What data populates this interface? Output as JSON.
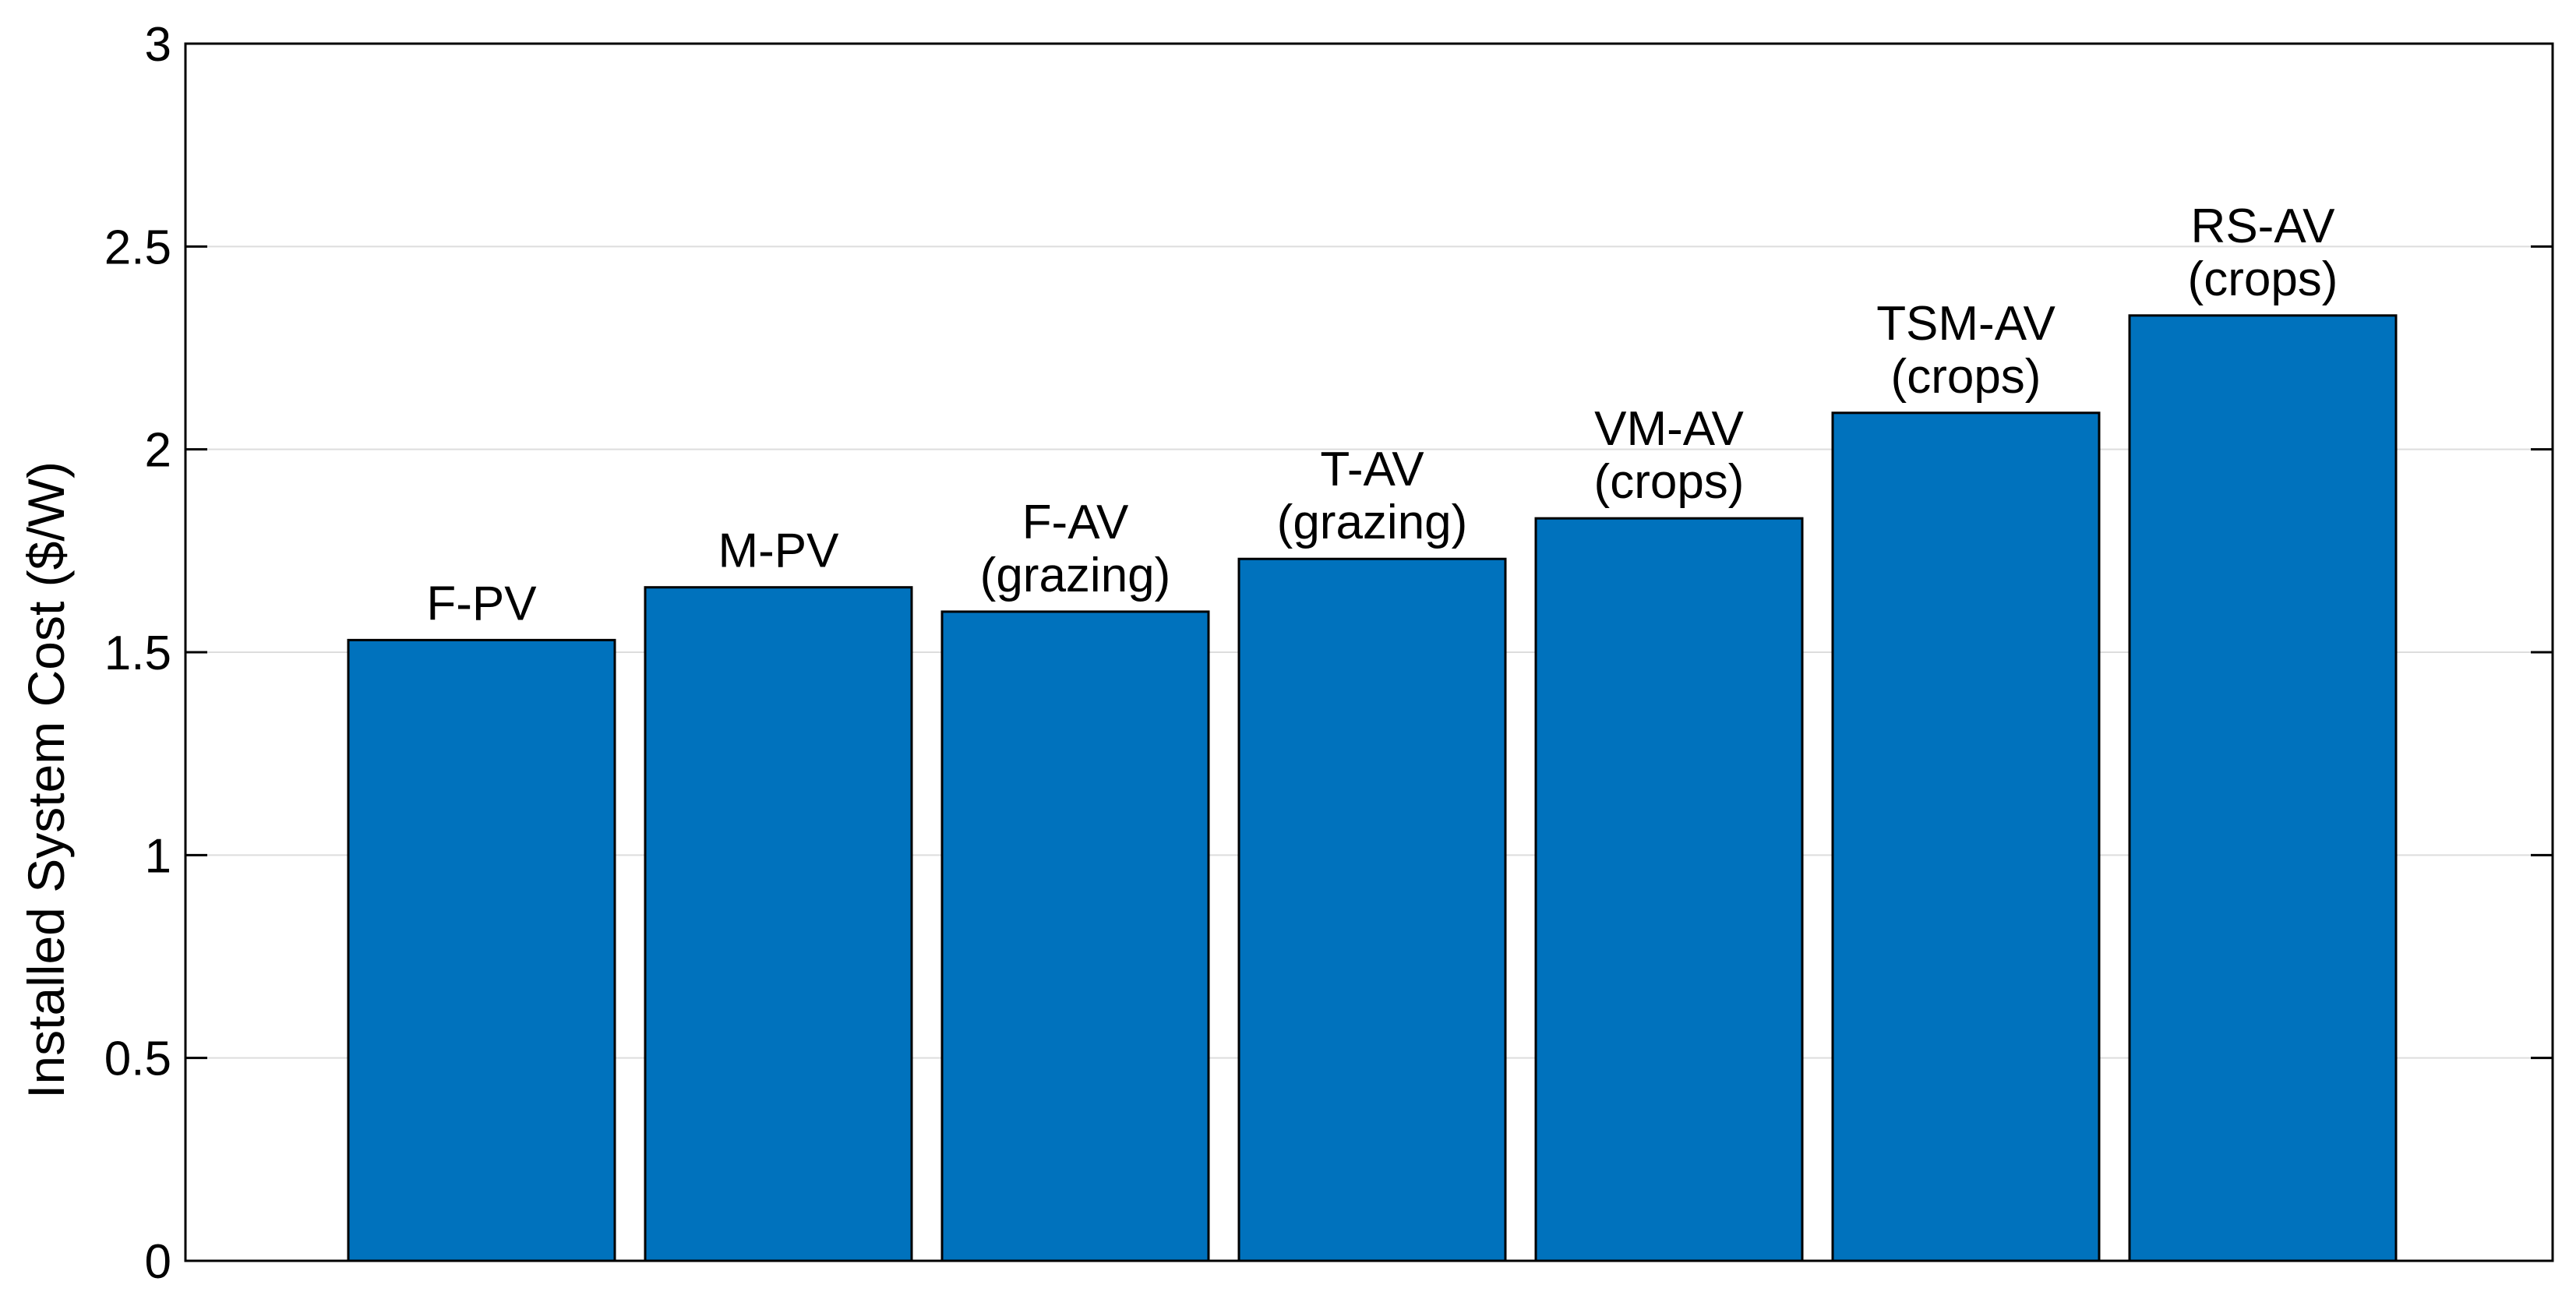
{
  "chart_data": {
    "type": "bar",
    "title": "",
    "xlabel": "",
    "ylabel": "Installed System Cost ($/W)",
    "ylim": [
      0,
      3
    ],
    "yticks": [
      0,
      0.5,
      1,
      1.5,
      2,
      2.5,
      3
    ],
    "ytick_labels": [
      "0",
      "0.5",
      "1",
      "1.5",
      "2",
      "2.5",
      "3"
    ],
    "grid": "horizontal",
    "bar_color": "#0072BD",
    "categories": [
      "F-PV",
      "M-PV",
      "F-AV (grazing)",
      "T-AV (grazing)",
      "VM-AV (crops)",
      "TSM-AV (crops)",
      "RS-AV (crops)"
    ],
    "bar_labels": [
      [
        "F-PV"
      ],
      [
        "M-PV"
      ],
      [
        "F-AV",
        "(grazing)"
      ],
      [
        "T-AV",
        "(grazing)"
      ],
      [
        "VM-AV",
        "(crops)"
      ],
      [
        "TSM-AV",
        "(crops)"
      ],
      [
        "RS-AV",
        "(crops)"
      ]
    ],
    "values": [
      1.53,
      1.66,
      1.6,
      1.73,
      1.83,
      2.09,
      2.33
    ]
  }
}
